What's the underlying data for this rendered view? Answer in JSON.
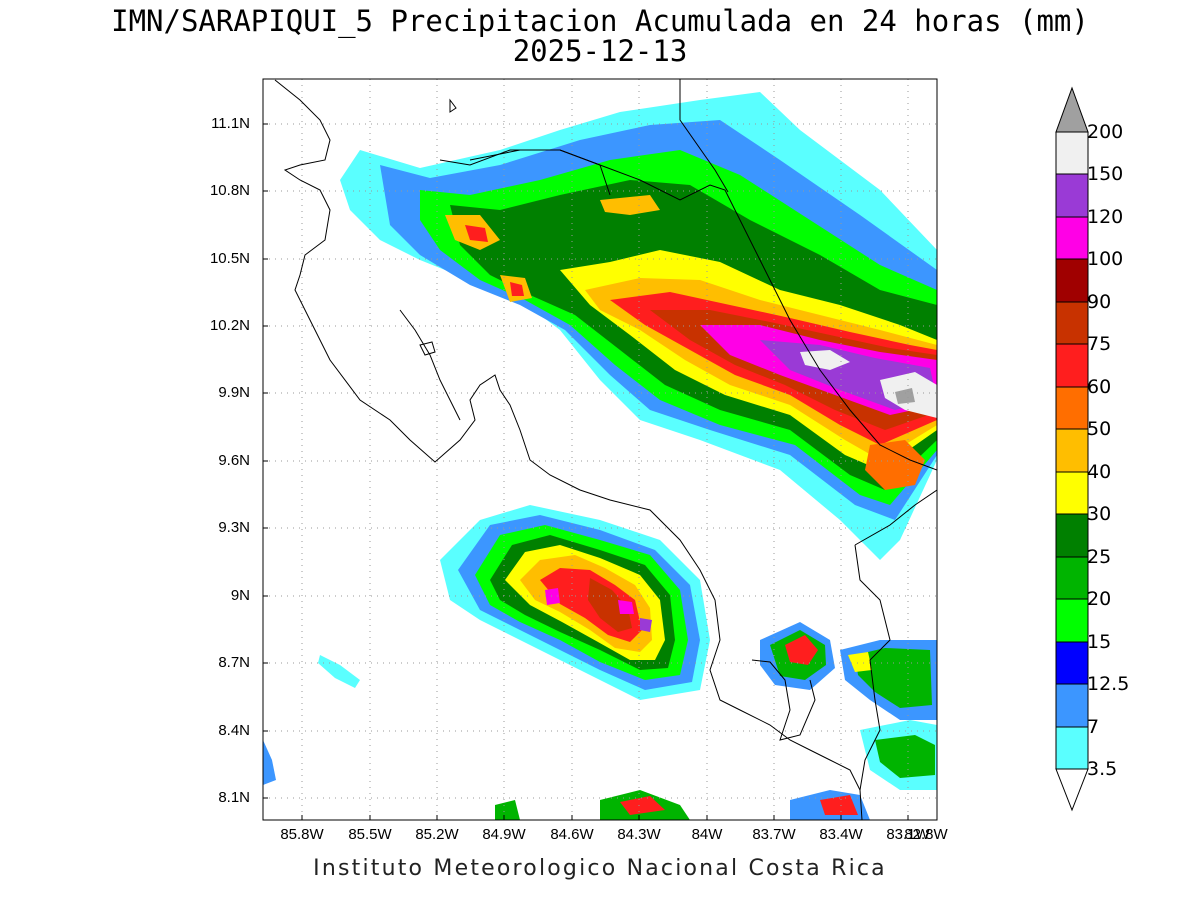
{
  "title": {
    "line1": "IMN/SARAPIQUI_5 Precipitacion Acumulada en 24 horas (mm)",
    "line2": "2025-12-13"
  },
  "credit": "Instituto Meteorologico Nacional Costa Rica",
  "map": {
    "lat_labels": [
      "11.1N",
      "10.8N",
      "10.5N",
      "10.2N",
      "9.9N",
      "9.6N",
      "9.3N",
      "9N",
      "8.7N",
      "8.4N",
      "8.1N"
    ],
    "lon_labels": [
      "85.8W",
      "85.5W",
      "85.2W",
      "84.9W",
      "84.6W",
      "84.3W",
      "84W",
      "83.7W",
      "83.4W",
      "83.1W",
      "82.8W"
    ],
    "grid": true,
    "region": "Costa Rica"
  },
  "colorbar": {
    "labels": [
      "200",
      "150",
      "120",
      "100",
      "90",
      "75",
      "60",
      "50",
      "40",
      "30",
      "25",
      "20",
      "15",
      "12.5",
      "7",
      "3.5"
    ],
    "colors_top_to_bottom": [
      "#a0a0a0",
      "#f0f0f0",
      "#9a3ad6",
      "#ff00e6",
      "#a00000",
      "#c83200",
      "#ff1e1e",
      "#ff6e00",
      "#ffbe00",
      "#ffff00",
      "#008000",
      "#00b400",
      "#00ff00",
      "#0000ff",
      "#3c96ff",
      "#5affff"
    ],
    "extend_top_color": "#a0a0a0",
    "extend_bottom_color": "#ffffff"
  }
}
